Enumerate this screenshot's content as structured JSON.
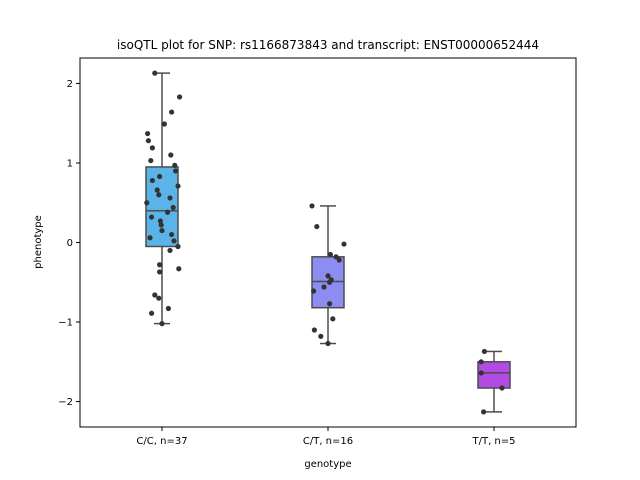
{
  "chart_data": {
    "type": "box",
    "title": "isoQTL plot for SNP: rs1166873843 and transcript: ENST00000652444",
    "xlabel": "genotype",
    "ylabel": "phenotype",
    "ylim": [
      -2.32,
      2.32
    ],
    "yticks": [
      -2,
      -1,
      0,
      1,
      2
    ],
    "yticklabels": [
      "−2",
      "−1",
      "0",
      "1",
      "2"
    ],
    "grid": false,
    "point_color": "#333333",
    "categories": [
      "C/C, n=37",
      "C/T, n=16",
      "T/T, n=5"
    ],
    "boxes": [
      {
        "category": "C/C, n=37",
        "color": "#5ab4e8",
        "whisker_low": -1.02,
        "q1": -0.05,
        "median": 0.4,
        "q3": 0.95,
        "whisker_high": 2.13,
        "points": [
          {
            "x": -0.09,
            "y": 2.13
          },
          {
            "x": 0.22,
            "y": 1.83
          },
          {
            "x": 0.12,
            "y": 1.64
          },
          {
            "x": 0.03,
            "y": 1.49
          },
          {
            "x": -0.18,
            "y": 1.37
          },
          {
            "x": -0.17,
            "y": 1.28
          },
          {
            "x": -0.12,
            "y": 1.19
          },
          {
            "x": 0.11,
            "y": 1.1
          },
          {
            "x": -0.14,
            "y": 1.03
          },
          {
            "x": 0.16,
            "y": 0.97
          },
          {
            "x": 0.17,
            "y": 0.9
          },
          {
            "x": -0.03,
            "y": 0.83
          },
          {
            "x": -0.12,
            "y": 0.78
          },
          {
            "x": 0.2,
            "y": 0.71
          },
          {
            "x": -0.06,
            "y": 0.66
          },
          {
            "x": -0.04,
            "y": 0.6
          },
          {
            "x": 0.1,
            "y": 0.56
          },
          {
            "x": -0.19,
            "y": 0.5
          },
          {
            "x": 0.14,
            "y": 0.44
          },
          {
            "x": 0.07,
            "y": 0.38
          },
          {
            "x": -0.13,
            "y": 0.32
          },
          {
            "x": -0.02,
            "y": 0.27
          },
          {
            "x": -0.01,
            "y": 0.22
          },
          {
            "x": 0.0,
            "y": 0.15
          },
          {
            "x": 0.12,
            "y": 0.1
          },
          {
            "x": -0.15,
            "y": 0.06
          },
          {
            "x": 0.15,
            "y": 0.02
          },
          {
            "x": 0.2,
            "y": -0.05
          },
          {
            "x": 0.1,
            "y": -0.1
          },
          {
            "x": -0.03,
            "y": -0.28
          },
          {
            "x": 0.21,
            "y": -0.33
          },
          {
            "x": -0.03,
            "y": -0.37
          },
          {
            "x": -0.09,
            "y": -0.66
          },
          {
            "x": -0.04,
            "y": -0.7
          },
          {
            "x": 0.08,
            "y": -0.83
          },
          {
            "x": -0.13,
            "y": -0.89
          },
          {
            "x": 0.0,
            "y": -1.02
          }
        ]
      },
      {
        "category": "C/T, n=16",
        "color": "#8c8cf2",
        "whisker_low": -1.27,
        "q1": -0.82,
        "median": -0.49,
        "q3": -0.18,
        "whisker_high": 0.46,
        "points": [
          {
            "x": -0.2,
            "y": 0.46
          },
          {
            "x": -0.14,
            "y": 0.2
          },
          {
            "x": 0.2,
            "y": -0.02
          },
          {
            "x": 0.03,
            "y": -0.15
          },
          {
            "x": 0.1,
            "y": -0.18
          },
          {
            "x": 0.14,
            "y": -0.22
          },
          {
            "x": 0.0,
            "y": -0.42
          },
          {
            "x": 0.04,
            "y": -0.47
          },
          {
            "x": 0.02,
            "y": -0.5
          },
          {
            "x": -0.05,
            "y": -0.56
          },
          {
            "x": -0.18,
            "y": -0.61
          },
          {
            "x": 0.02,
            "y": -0.77
          },
          {
            "x": 0.06,
            "y": -0.96
          },
          {
            "x": -0.17,
            "y": -1.1
          },
          {
            "x": -0.09,
            "y": -1.18
          },
          {
            "x": 0.0,
            "y": -1.27
          }
        ]
      },
      {
        "category": "T/T, n=5",
        "color": "#b44ae4",
        "whisker_low": -2.13,
        "q1": -1.83,
        "median": -1.64,
        "q3": -1.5,
        "whisker_high": -1.37,
        "points": [
          {
            "x": -0.12,
            "y": -1.37
          },
          {
            "x": -0.16,
            "y": -1.5
          },
          {
            "x": -0.16,
            "y": -1.64
          },
          {
            "x": 0.1,
            "y": -1.83
          },
          {
            "x": -0.13,
            "y": -2.13
          }
        ]
      }
    ]
  }
}
